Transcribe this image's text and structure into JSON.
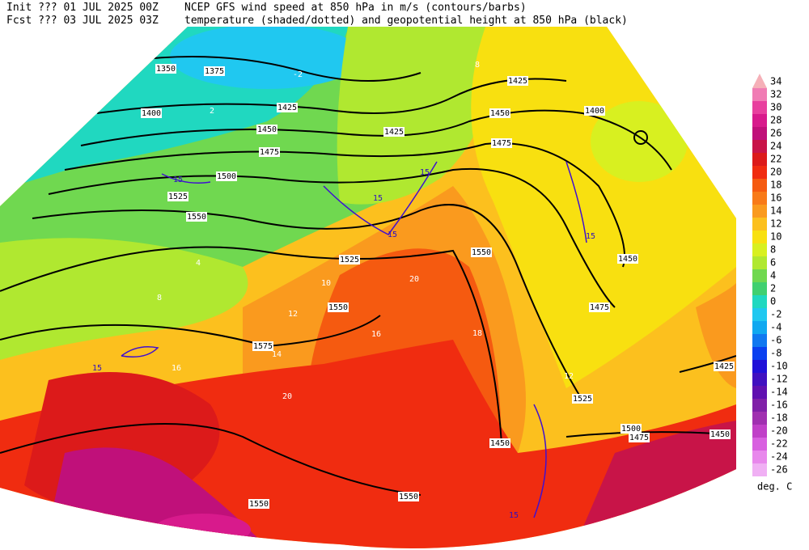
{
  "header": {
    "init": "Init  ??? 01 JUL 2025 00Z",
    "fcst": "Fcst ??? 03 JUL 2025 03Z",
    "line1": "NCEP GFS wind speed at 850 hPa in m/s (contours/barbs)",
    "line2": "temperature (shaded/dotted) and geopotential height at 850 hPa (black)"
  },
  "colorbar": {
    "labels": [
      34,
      32,
      30,
      28,
      26,
      24,
      22,
      20,
      18,
      16,
      14,
      12,
      10,
      8,
      6,
      4,
      2,
      0,
      -2,
      -4,
      -6,
      -8,
      -10,
      -12,
      -14,
      -16,
      -18,
      -20,
      -22,
      -24,
      -26
    ],
    "colors": [
      "#f5b0b8",
      "#f07cb4",
      "#e8409e",
      "#d81a8c",
      "#c0107a",
      "#c81448",
      "#dc1a1a",
      "#f02c10",
      "#f55a10",
      "#f87a18",
      "#fa9a1e",
      "#fcc01e",
      "#f8e010",
      "#d8f020",
      "#b0e830",
      "#70d850",
      "#40d070",
      "#20d8c0",
      "#20c8f0",
      "#10a8f0",
      "#1078f0",
      "#0a40f0",
      "#2010d8",
      "#4010c0",
      "#6010b0",
      "#8020a8",
      "#a030b0",
      "#c040c8",
      "#d860e0",
      "#e888ec",
      "#f0b0f4"
    ],
    "unit": "deg. C"
  },
  "height_labels": [
    1350,
    1375,
    1400,
    1425,
    1450,
    1475,
    1500,
    1525,
    1550,
    1425,
    1425,
    1450,
    1475,
    1400,
    1525,
    1550,
    1450,
    1550,
    1475,
    1575,
    1525,
    1500,
    1475,
    1450,
    1425,
    1450,
    1550,
    1550
  ],
  "wind_labels": [
    15,
    15,
    15,
    15,
    15,
    15,
    15
  ],
  "temperature_labels": [
    4,
    8,
    10,
    12,
    14,
    16,
    18,
    20,
    20,
    16,
    12,
    8,
    2,
    -2
  ]
}
